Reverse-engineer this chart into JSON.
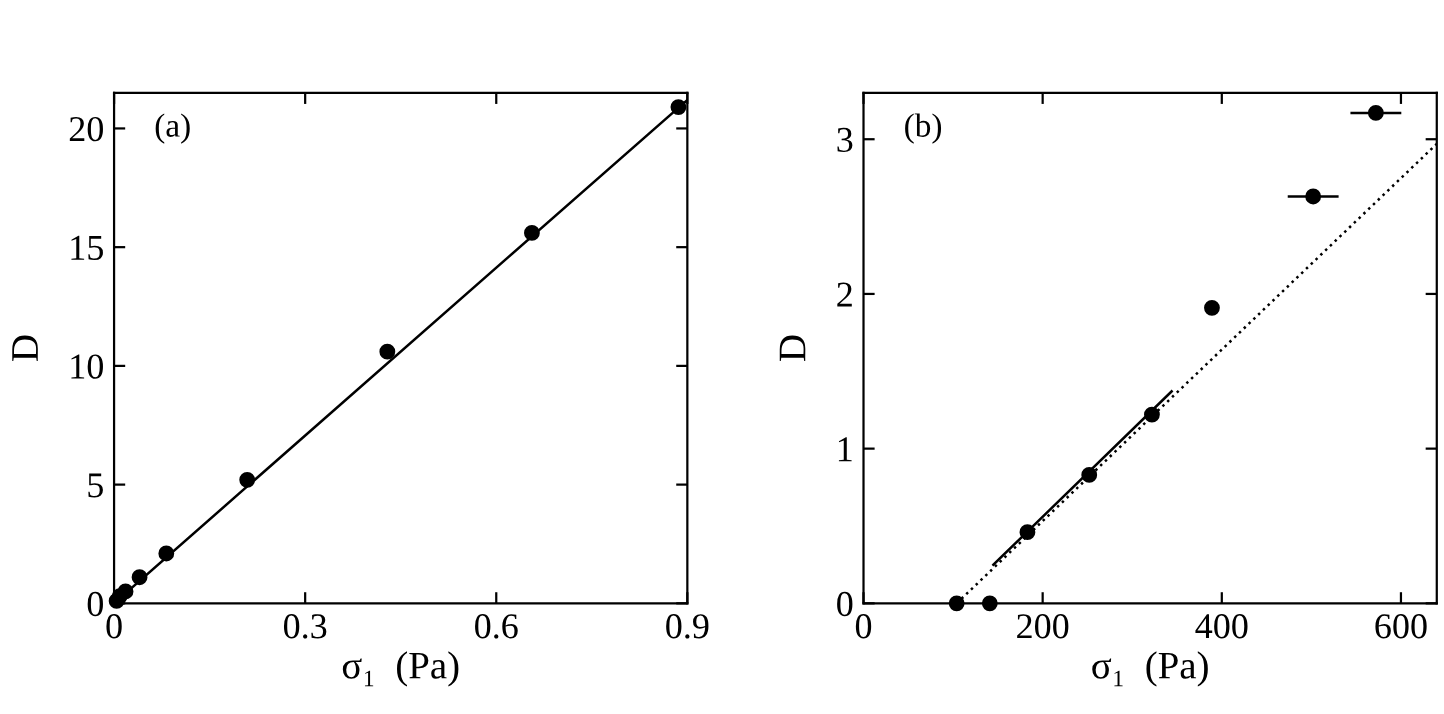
{
  "chart_data": [
    {
      "type": "scatter",
      "xlabel": "σ₁  (Pa)",
      "ylabel": "D",
      "annotations": [
        "(a)"
      ],
      "xlim": [
        0,
        0.9
      ],
      "ylim": [
        0,
        21.5
      ],
      "xticks": [
        0,
        0.3,
        0.6,
        0.9
      ],
      "yticks": [
        0,
        5,
        10,
        15,
        20
      ],
      "grid": false,
      "legend": false,
      "marker": "circle",
      "series": [
        {
          "color": "#000000",
          "x": [
            0.004,
            0.009,
            0.018,
            0.04,
            0.082,
            0.209,
            0.429,
            0.656,
            0.886
          ],
          "values": [
            0.1,
            0.3,
            0.5,
            1.1,
            2.1,
            5.2,
            10.6,
            15.6,
            20.9
          ]
        },
        {
          "type": "line",
          "color": "#000000",
          "line_style": "solid",
          "marker": "none",
          "x": [
            0,
            0.9
          ],
          "values": [
            0,
            21.2
          ]
        }
      ]
    },
    {
      "type": "scatter",
      "xlabel": "σ₁  (Pa)",
      "ylabel": "D",
      "annotations": [
        "(b)"
      ],
      "xlim": [
        0,
        640
      ],
      "ylim": [
        0,
        3.3
      ],
      "xticks": [
        0,
        200,
        400,
        600
      ],
      "yticks": [
        0,
        1,
        2,
        3
      ],
      "grid": false,
      "legend": false,
      "marker": "circle",
      "series": [
        {
          "type": "line",
          "color": "#000000",
          "line_style": "dotted",
          "marker": "none",
          "x": [
            104,
            640
          ],
          "values": [
            0,
            2.97
          ]
        },
        {
          "type": "line",
          "color": "#000000",
          "line_style": "solid",
          "marker": "none",
          "x": [
            145,
            344
          ],
          "values": [
            0.25,
            1.37
          ]
        },
        {
          "color": "#000000",
          "x": [
            104,
            141,
            183,
            252,
            322,
            389,
            502,
            572
          ],
          "values": [
            0,
            0,
            0.46,
            0.83,
            1.22,
            1.91,
            2.63,
            3.17
          ],
          "xerrors": [
            null,
            null,
            null,
            null,
            null,
            null,
            27,
            27
          ]
        }
      ]
    }
  ]
}
